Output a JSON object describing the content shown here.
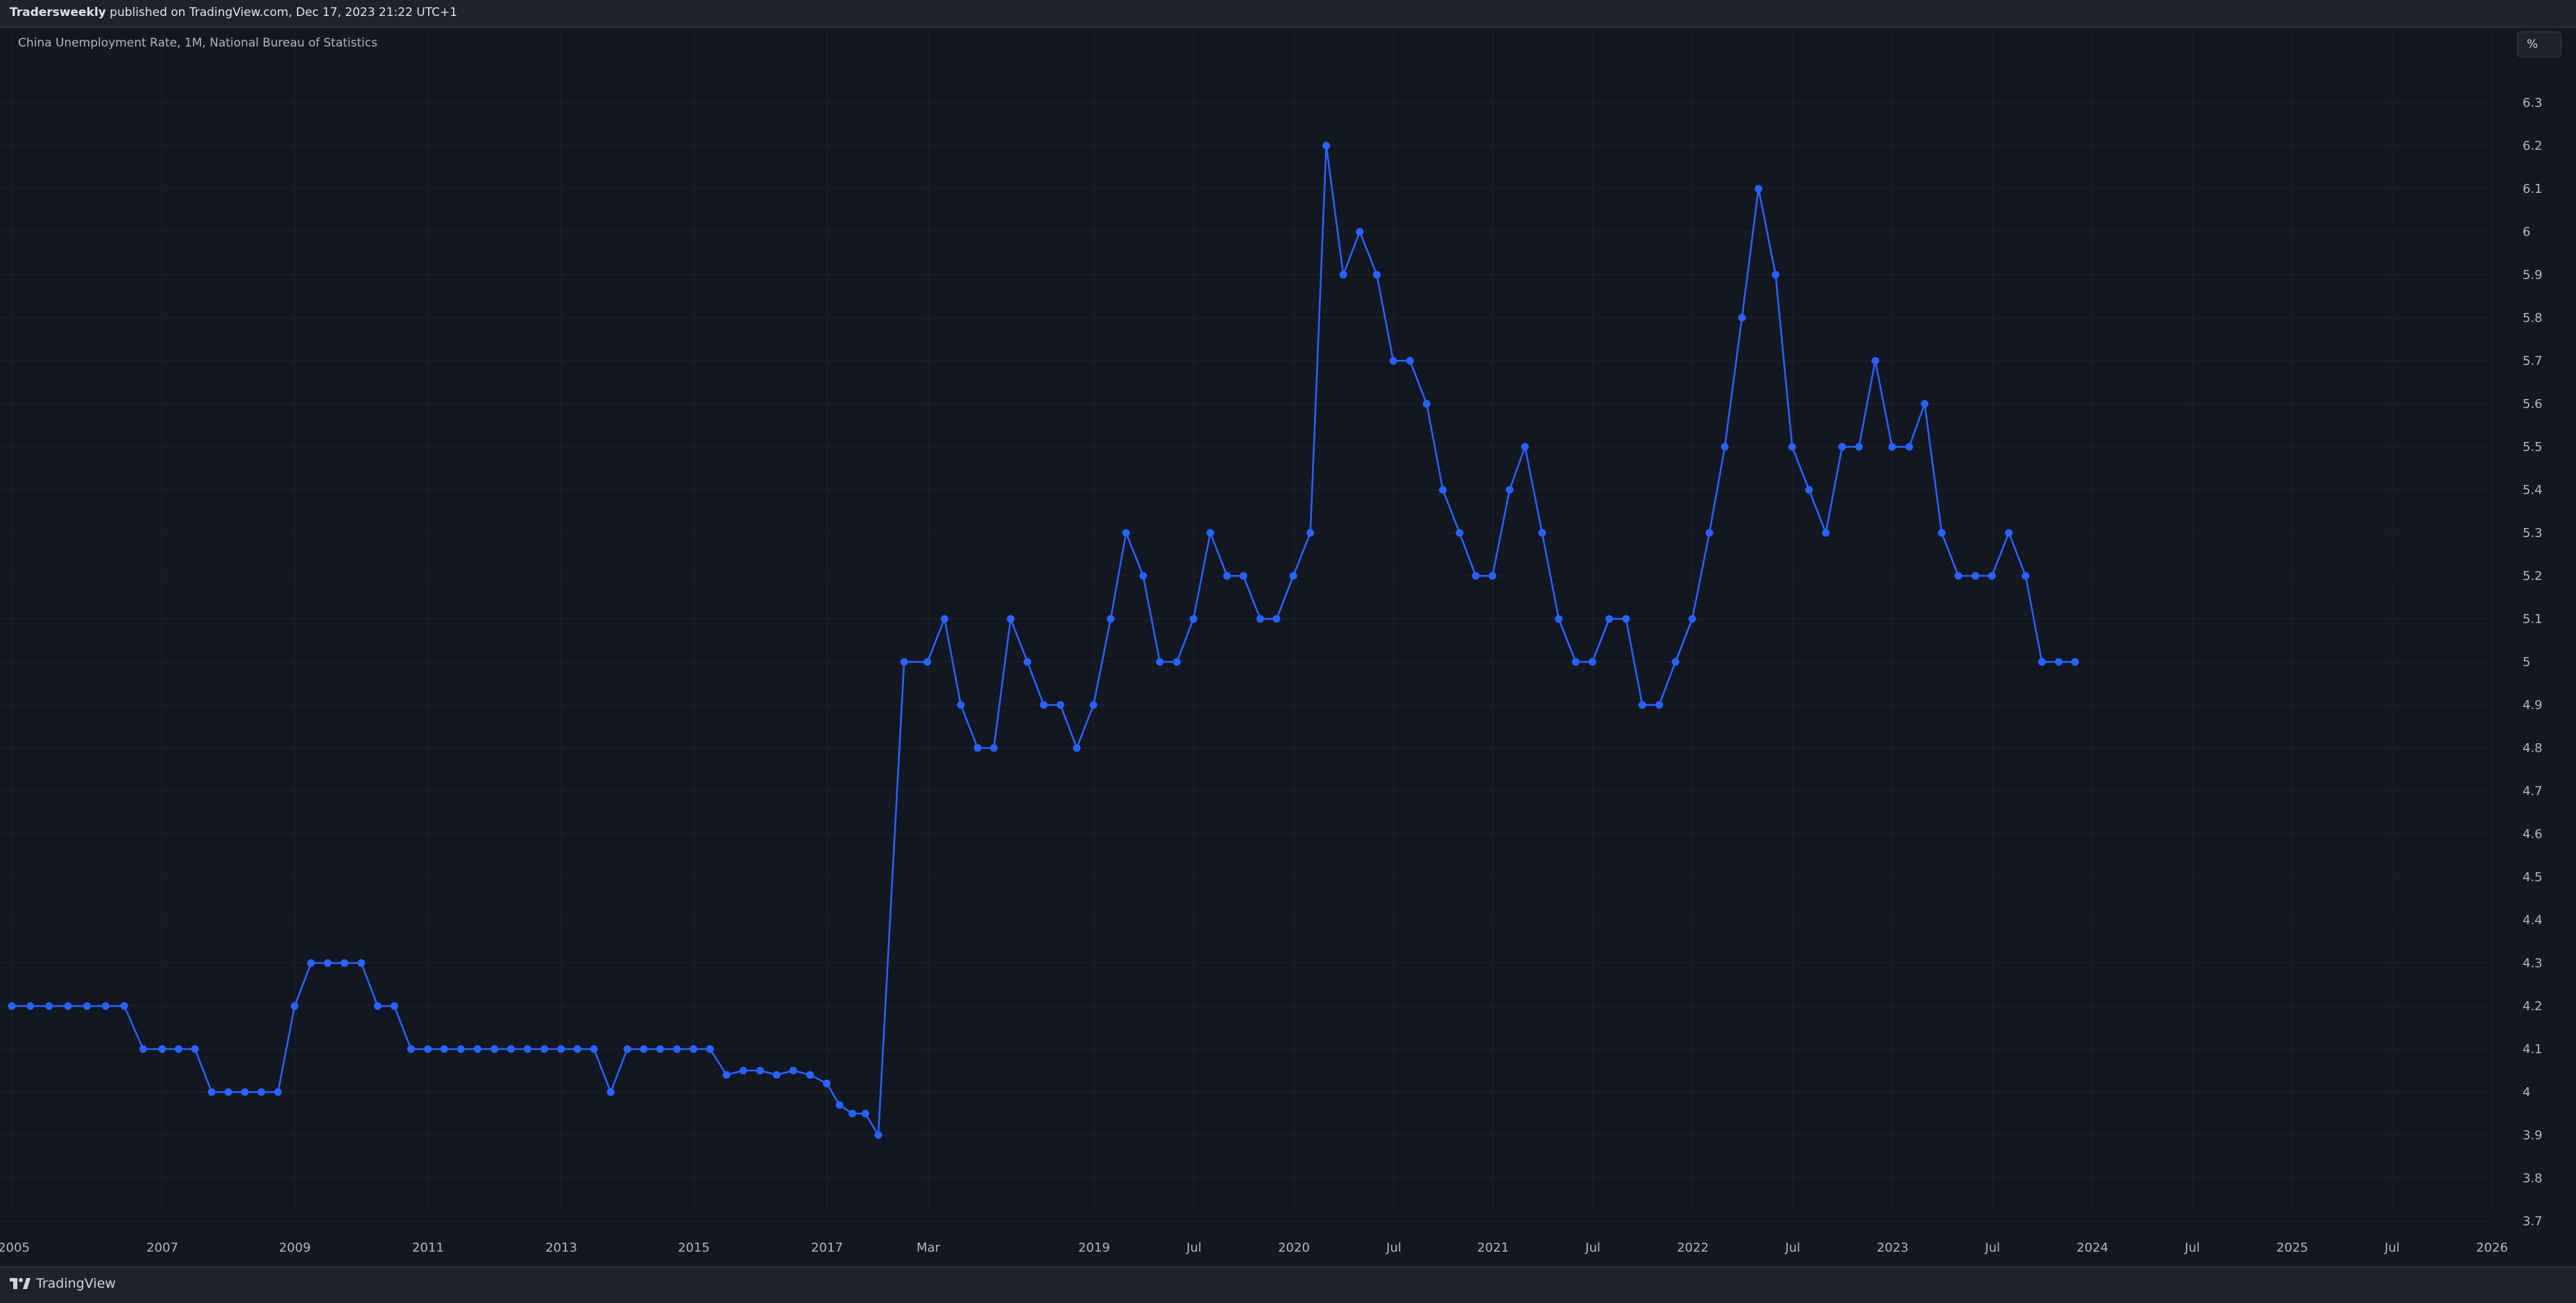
{
  "header": {
    "publisher": "Tradersweekly",
    "publish_text": " published on TradingView.com, Dec 17, 2023 21:22 UTC+1"
  },
  "legend": {
    "title": "China Unemployment Rate, 1M, National Bureau of Statistics"
  },
  "unit_button": {
    "label": "%"
  },
  "brand": {
    "name": "TradingView"
  },
  "colors": {
    "background": "#131722",
    "line": "#2962ff",
    "grid": "#1f2330",
    "text": "#b2b5be"
  },
  "chart_data": {
    "type": "line",
    "title": "China Unemployment Rate, 1M, National Bureau of Statistics",
    "xlabel": "",
    "ylabel": "",
    "ylim": [
      3.7,
      6.3
    ],
    "grid": true,
    "y_ticks": [
      3.7,
      3.8,
      3.9,
      4,
      4.1,
      4.2,
      4.3,
      4.4,
      4.5,
      4.6,
      4.7,
      4.8,
      4.9,
      5,
      5.1,
      5.2,
      5.3,
      5.4,
      5.5,
      5.6,
      5.7,
      5.8,
      5.9,
      6,
      6.1,
      6.2,
      6.3
    ],
    "x_tick_labels": [
      "2005",
      "2007",
      "2009",
      "2011",
      "2013",
      "2015",
      "2017",
      "Mar",
      "2019",
      "Jul",
      "2020",
      "Jul",
      "2021",
      "Jul",
      "2022",
      "Jul",
      "2023",
      "Jul",
      "2024",
      "Jul",
      "2025",
      "Jul",
      "2026"
    ],
    "series": [
      {
        "segments": [
          {
            "x": [
              "2004-12-31",
              "2005-03-31",
              "2005-06-30",
              "2005-09-30",
              "2005-12-31",
              "2006-03-31",
              "2006-06-30",
              "2006-09-30",
              "2006-12-31",
              "2007-03-31",
              "2007-06-30",
              "2007-09-30",
              "2007-12-31",
              "2008-03-31",
              "2008-06-30",
              "2008-09-30",
              "2008-12-31",
              "2009-03-31",
              "2009-06-30",
              "2009-09-30",
              "2009-12-31",
              "2010-03-31",
              "2010-06-30",
              "2010-09-30",
              "2010-12-31",
              "2011-03-31",
              "2011-06-30",
              "2011-09-30",
              "2011-12-31",
              "2012-03-31",
              "2012-06-30",
              "2012-09-30",
              "2012-12-31",
              "2013-03-31",
              "2013-06-30",
              "2013-09-30",
              "2013-12-31",
              "2014-03-31",
              "2014-06-30",
              "2014-09-30",
              "2014-12-31",
              "2015-03-31",
              "2015-06-30",
              "2015-09-30",
              "2015-12-31",
              "2016-03-31",
              "2016-06-30",
              "2016-09-30",
              "2016-12-31",
              "2017-03-31",
              "2017-06-30",
              "2017-09-30",
              "2017-12-31"
            ],
            "y": [
              4.2,
              4.2,
              4.2,
              4.2,
              4.2,
              4.2,
              4.2,
              4.1,
              4.1,
              4.1,
              4.1,
              4.0,
              4.0,
              4.0,
              4.0,
              4.0,
              4.2,
              4.3,
              4.3,
              4.3,
              4.3,
              4.2,
              4.2,
              4.1,
              4.1,
              4.1,
              4.1,
              4.1,
              4.1,
              4.1,
              4.1,
              4.1,
              4.1,
              4.1,
              4.1,
              4.0,
              4.1,
              4.1,
              4.1,
              4.1,
              4.1,
              4.1,
              4.04,
              4.05,
              4.05,
              4.04,
              4.05,
              4.04,
              4.02,
              3.97,
              3.95,
              3.95,
              3.9
            ]
          },
          {
            "x": [
              "2018-01-31",
              "2018-02-28",
              "2018-03-31",
              "2018-04-30",
              "2018-05-31",
              "2018-06-30",
              "2018-07-31",
              "2018-08-31",
              "2018-09-30",
              "2018-10-31",
              "2018-11-30",
              "2018-12-31",
              "2019-01-31",
              "2019-02-28",
              "2019-03-31",
              "2019-04-30",
              "2019-05-31",
              "2019-06-30",
              "2019-07-31",
              "2019-08-31",
              "2019-09-30",
              "2019-10-31",
              "2019-11-30",
              "2019-12-31",
              "2020-01-31",
              "2020-02-29",
              "2020-03-31",
              "2020-04-30",
              "2020-05-31",
              "2020-06-30",
              "2020-07-31",
              "2020-08-31",
              "2020-09-30",
              "2020-10-31",
              "2020-11-30",
              "2020-12-31",
              "2021-01-31",
              "2021-02-28",
              "2021-03-31",
              "2021-04-30",
              "2021-05-31",
              "2021-06-30",
              "2021-07-31",
              "2021-08-31",
              "2021-09-30",
              "2021-10-31",
              "2021-11-30",
              "2021-12-31",
              "2022-01-31",
              "2022-02-28",
              "2022-03-31",
              "2022-04-30",
              "2022-05-31",
              "2022-06-30",
              "2022-07-31",
              "2022-08-31",
              "2022-09-30",
              "2022-10-31",
              "2022-11-30",
              "2022-12-31",
              "2023-01-31",
              "2023-02-28",
              "2023-03-31",
              "2023-04-30",
              "2023-05-31",
              "2023-06-30",
              "2023-07-31",
              "2023-08-31",
              "2023-09-30",
              "2023-10-31",
              "2023-11-30"
            ],
            "y": [
              5.0,
              5.0,
              5.1,
              4.9,
              4.8,
              4.8,
              5.1,
              5.0,
              4.9,
              4.9,
              4.8,
              4.9,
              5.1,
              5.3,
              5.2,
              5.0,
              5.0,
              5.1,
              5.3,
              5.2,
              5.2,
              5.1,
              5.1,
              5.2,
              5.3,
              6.2,
              5.9,
              6.0,
              5.9,
              5.7,
              5.7,
              5.6,
              5.4,
              5.3,
              5.2,
              5.2,
              5.4,
              5.5,
              5.3,
              5.1,
              5.0,
              5.0,
              5.1,
              5.1,
              4.9,
              4.9,
              5.0,
              5.1,
              5.3,
              5.5,
              5.8,
              6.1,
              5.9,
              5.5,
              5.4,
              5.3,
              5.5,
              5.5,
              5.7,
              5.5,
              5.5,
              5.6,
              5.3,
              5.2,
              5.2,
              5.2,
              5.3,
              5.2,
              5.0,
              5.0,
              5.0
            ]
          }
        ]
      }
    ]
  }
}
